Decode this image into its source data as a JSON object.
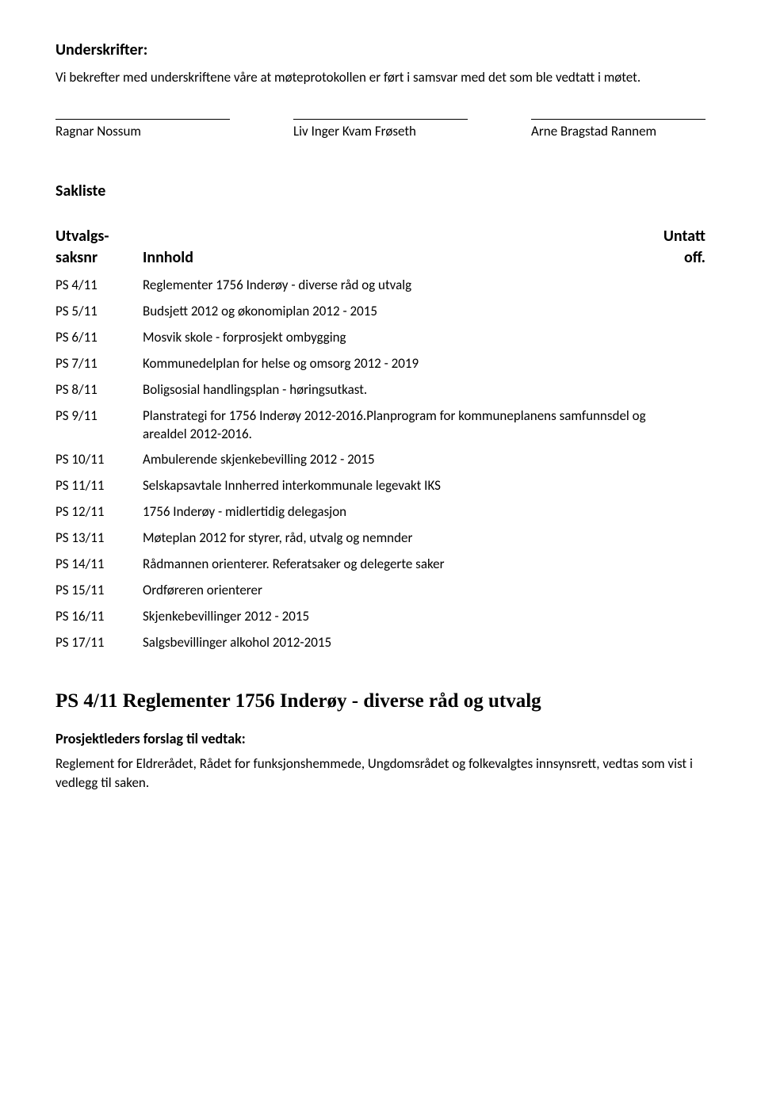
{
  "underskrifter": {
    "heading": "Underskrifter:",
    "body": "Vi bekrefter med underskriftene våre at møteprotokollen er ført i samsvar med det som ble vedtatt i møtet.",
    "signatures": [
      "Ragnar Nossum",
      "Liv Inger Kvam Frøseth",
      "Arne Bragstad Rannem"
    ]
  },
  "sakliste": {
    "heading": "Sakliste",
    "header_col1a": "Utvalgs-",
    "header_col1b": "saksnr",
    "header_col2": "Innhold",
    "header_col3a": "Untatt",
    "header_col3b": "off.",
    "rows": [
      {
        "code": "PS 4/11",
        "desc": "Reglementer 1756 Inderøy - diverse råd og utvalg"
      },
      {
        "code": "PS 5/11",
        "desc": "Budsjett 2012 og økonomiplan 2012 - 2015"
      },
      {
        "code": "PS 6/11",
        "desc": "Mosvik skole - forprosjekt ombygging"
      },
      {
        "code": "PS 7/11",
        "desc": "Kommunedelplan for helse og omsorg 2012 - 2019"
      },
      {
        "code": "PS 8/11",
        "desc": "Boligsosial handlingsplan - høringsutkast."
      },
      {
        "code": "PS 9/11",
        "desc": "Planstrategi for 1756 Inderøy 2012-2016.Planprogram for kommuneplanens samfunnsdel og arealdel 2012-2016."
      },
      {
        "code": "PS 10/11",
        "desc": "Ambulerende skjenkebevilling 2012 - 2015"
      },
      {
        "code": "PS 11/11",
        "desc": "Selskapsavtale Innherred interkommunale legevakt IKS"
      },
      {
        "code": "PS 12/11",
        "desc": "1756 Inderøy - midlertidig delegasjon"
      },
      {
        "code": "PS 13/11",
        "desc": "Møteplan 2012 for styrer, råd, utvalg og nemnder"
      },
      {
        "code": "PS 14/11",
        "desc": "Rådmannen orienterer. Referatsaker og delegerte saker"
      },
      {
        "code": "PS 15/11",
        "desc": "Ordføreren orienterer"
      },
      {
        "code": "PS 16/11",
        "desc": "Skjenkebevillinger 2012 - 2015"
      },
      {
        "code": "PS 17/11",
        "desc": "Salgsbevillinger alkohol 2012-2015"
      }
    ]
  },
  "bottom": {
    "heading": "PS 4/11 Reglementer 1756 Inderøy - diverse råd og utvalg",
    "subheading": "Prosjektleders forslag til vedtak:",
    "body": "Reglement for Eldrerådet, Rådet for funksjonshemmede, Ungdomsrådet og folkevalgtes innsynsrett, vedtas som vist i vedlegg til saken."
  },
  "colors": {
    "text": "#000000",
    "background": "#ffffff"
  },
  "fonts": {
    "body_family": "Calibri",
    "heading_family": "Times New Roman",
    "section_size_pt": 15,
    "body_size_pt": 13,
    "ps_heading_size_pt": 19
  }
}
